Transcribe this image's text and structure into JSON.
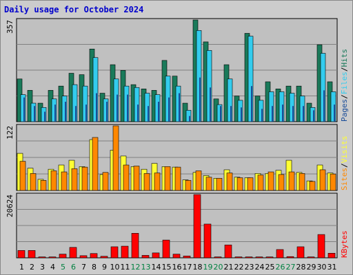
{
  "title": "Daily usage for October 2024",
  "colors": {
    "hits": "#1a7a5a",
    "files": "#33ccee",
    "pages": "#1a4d99",
    "visits": "#ff8800",
    "sites": "#ffff33",
    "kbytes": "#ff0000",
    "weekend_day": "#008040",
    "weekday": "#000000",
    "frame_bg": "#cccccc",
    "plot_bg": "#c0c0c0",
    "gridline": "#808080"
  },
  "chart_data": [
    {
      "type": "bar",
      "panel": "hits-files-pages",
      "ymax_label": "357",
      "ylim": [
        0,
        357
      ],
      "legend": [
        {
          "name": "Pages",
          "color": "#1a4d99"
        },
        {
          "name": "/",
          "color": "#000000"
        },
        {
          "name": "Files",
          "color": "#33ccee"
        },
        {
          "name": "/",
          "color": "#000000"
        },
        {
          "name": "Hits",
          "color": "#1a7a5a"
        }
      ],
      "series": [
        {
          "name": "Hits",
          "values": [
            150,
            110,
            65,
            110,
            125,
            170,
            165,
            255,
            100,
            200,
            180,
            130,
            115,
            110,
            215,
            160,
            65,
            357,
            280,
            80,
            200,
            90,
            310,
            90,
            140,
            115,
            125,
            125,
            65,
            270,
            140
          ]
        },
        {
          "name": "Files",
          "values": [
            95,
            65,
            50,
            80,
            90,
            130,
            125,
            225,
            80,
            150,
            125,
            120,
            100,
            95,
            160,
            125,
            40,
            320,
            250,
            60,
            150,
            75,
            300,
            75,
            105,
            105,
            100,
            90,
            50,
            240,
            105
          ]
        },
        {
          "name": "Pages",
          "values": [
            85,
            55,
            35,
            60,
            70,
            55,
            60,
            100,
            70,
            95,
            95,
            60,
            55,
            70,
            85,
            100,
            20,
            155,
            120,
            55,
            55,
            50,
            125,
            45,
            55,
            60,
            55,
            55,
            40,
            110,
            60
          ]
        }
      ]
    },
    {
      "type": "bar",
      "panel": "visits-sites",
      "ymax_label": "122",
      "ylim": [
        0,
        122
      ],
      "legend": [
        {
          "name": "Sites",
          "color": "#ff8800"
        },
        {
          "name": "/",
          "color": "#000000"
        },
        {
          "name": "Visits",
          "color": "#ffff33"
        }
      ],
      "series": [
        {
          "name": "Visits",
          "values": [
            70,
            42,
            21,
            40,
            48,
            57,
            45,
            96,
            30,
            76,
            65,
            45,
            40,
            51,
            45,
            44,
            20,
            34,
            28,
            23,
            39,
            25,
            24,
            32,
            32,
            38,
            57,
            34,
            18,
            48,
            33
          ]
        },
        {
          "name": "Sites",
          "values": [
            55,
            32,
            19,
            37,
            35,
            41,
            44,
            100,
            34,
            122,
            48,
            46,
            32,
            33,
            45,
            44,
            19,
            37,
            25,
            23,
            33,
            24,
            24,
            29,
            35,
            30,
            35,
            32,
            17,
            39,
            31
          ]
        }
      ]
    },
    {
      "type": "bar",
      "panel": "kbytes",
      "ymax_label": "20624",
      "ylim": [
        0,
        20624
      ],
      "legend": [
        {
          "name": "KBytes",
          "color": "#ff0000"
        }
      ],
      "series": [
        {
          "name": "KBytes",
          "values": [
            2400,
            2400,
            300,
            300,
            1200,
            3400,
            700,
            1400,
            500,
            3600,
            3800,
            8000,
            800,
            1600,
            5800,
            1200,
            600,
            20624,
            11000,
            300,
            4200,
            300,
            300,
            300,
            300,
            2700,
            400,
            3600,
            300,
            7600,
            1500
          ]
        }
      ]
    }
  ],
  "x_labels": [
    "1",
    "2",
    "3",
    "4",
    "5",
    "6",
    "7",
    "8",
    "9",
    "10",
    "11",
    "12",
    "13",
    "14",
    "15",
    "16",
    "17",
    "18",
    "19",
    "20",
    "21",
    "22",
    "23",
    "24",
    "25",
    "26",
    "27",
    "28",
    "29",
    "30",
    "31"
  ],
  "weekend_days": [
    5,
    6,
    12,
    13,
    19,
    20,
    26,
    27
  ]
}
